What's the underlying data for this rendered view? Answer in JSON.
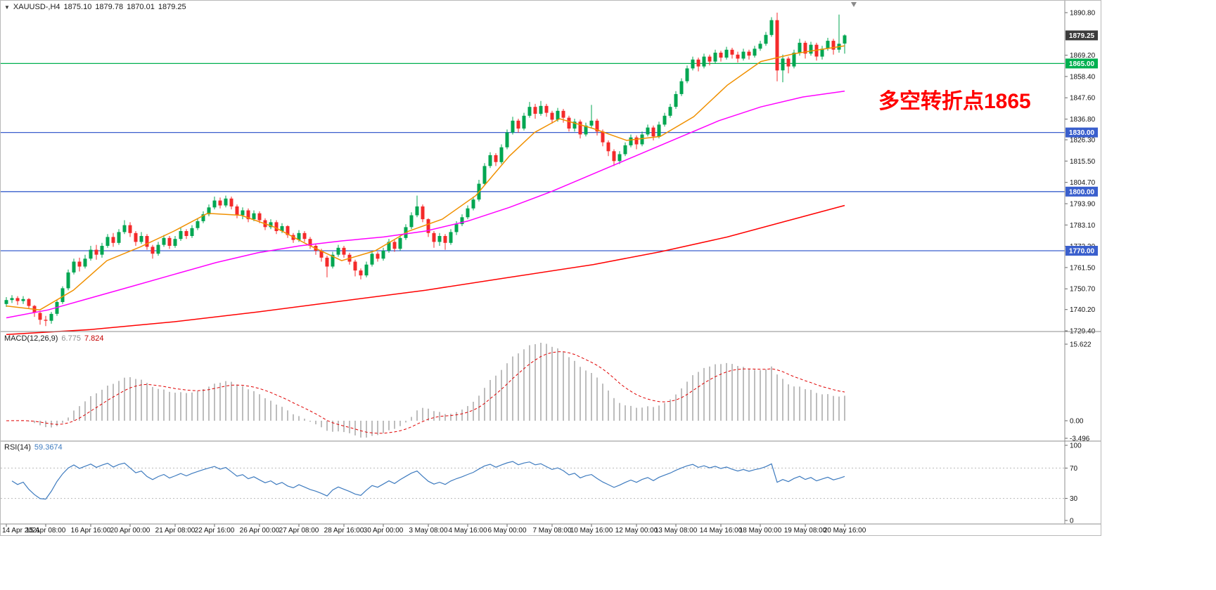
{
  "window": {
    "symbol_info": {
      "symbol": "XAUUSD-,H4",
      "open": "1875.10",
      "high": "1879.78",
      "low": "1870.01",
      "close": "1879.25"
    }
  },
  "annotation": {
    "text": "多空转折点1865",
    "color": "#FF0000"
  },
  "chart_data": {
    "type": "candlestick",
    "symbol": "XAUUSD",
    "timeframe": "H4",
    "title": "XAUUSD-,H4 1875.10 1879.78 1870.01 1879.25",
    "up_color": "#00A651",
    "down_color": "#F42A2A",
    "background": "#FFFFFF",
    "y_axis": {
      "price_top": 1890.8,
      "price_bottom": 1729.4
    },
    "y_ticks": [
      [
        1890.8,
        "1890.80"
      ],
      [
        1869.2,
        "1869.20"
      ],
      [
        1858.4,
        "1858.40"
      ],
      [
        1847.6,
        "1847.60"
      ],
      [
        1836.8,
        "1836.80"
      ],
      [
        1826.3,
        "1826.30"
      ],
      [
        1815.5,
        "1815.50"
      ],
      [
        1804.7,
        "1804.70"
      ],
      [
        1793.9,
        "1793.90"
      ],
      [
        1783.1,
        "1783.10"
      ],
      [
        1772.3,
        "1772.30"
      ],
      [
        1761.5,
        "1761.50"
      ],
      [
        1750.7,
        "1750.70"
      ],
      [
        1740.2,
        "1740.20"
      ],
      [
        1729.4,
        "1729.40"
      ]
    ],
    "x_labels": [
      "14 Apr 2021",
      "15 Apr 08:00",
      "16 Apr 16:00",
      "20 Apr 00:00",
      "21 Apr 08:00",
      "22 Apr 16:00",
      "26 Apr 00:00",
      "27 Apr 08:00",
      "28 Apr 16:00",
      "30 Apr 00:00",
      "3 May 08:00",
      "4 May 16:00",
      "6 May 00:00",
      "7 May 08:00",
      "10 May 16:00",
      "12 May 00:00",
      "13 May 08:00",
      "14 May 16:00",
      "18 May 00:00",
      "19 May 08:00",
      "20 May 16:00"
    ],
    "hlines": [
      {
        "price": 1879.25,
        "label": "1879.25",
        "line": false,
        "color": "#3C3C3C",
        "role": "current-price"
      },
      {
        "price": 1865.0,
        "label": "1865.00",
        "line": true,
        "color": "#00B050",
        "role": "support-resistance"
      },
      {
        "price": 1830.0,
        "label": "1830.00",
        "line": true,
        "color": "#3A5FCD",
        "role": "support-resistance"
      },
      {
        "price": 1800.0,
        "label": "1800.00",
        "line": true,
        "color": "#3A5FCD",
        "role": "support-resistance"
      },
      {
        "price": 1770.0,
        "label": "1770.00",
        "line": true,
        "color": "#3A5FCD",
        "role": "support-resistance"
      }
    ],
    "moving_averages": [
      {
        "name": "ma-fast-orange",
        "color": "#F09000",
        "points": [
          [
            0.0,
            1742
          ],
          [
            0.04,
            1740
          ],
          [
            0.08,
            1750
          ],
          [
            0.12,
            1765
          ],
          [
            0.16,
            1772
          ],
          [
            0.2,
            1780
          ],
          [
            0.24,
            1789
          ],
          [
            0.28,
            1788
          ],
          [
            0.32,
            1782
          ],
          [
            0.36,
            1773
          ],
          [
            0.4,
            1765
          ],
          [
            0.44,
            1770
          ],
          [
            0.48,
            1780
          ],
          [
            0.52,
            1786
          ],
          [
            0.56,
            1798
          ],
          [
            0.6,
            1818
          ],
          [
            0.63,
            1830
          ],
          [
            0.66,
            1837
          ],
          [
            0.7,
            1832
          ],
          [
            0.74,
            1826
          ],
          [
            0.78,
            1828
          ],
          [
            0.82,
            1838
          ],
          [
            0.86,
            1854
          ],
          [
            0.9,
            1866
          ],
          [
            0.94,
            1870
          ],
          [
            0.97,
            1872
          ],
          [
            1.0,
            1874
          ]
        ]
      },
      {
        "name": "ma-mid-magenta",
        "color": "#FF00FF",
        "points": [
          [
            0.0,
            1736
          ],
          [
            0.05,
            1740
          ],
          [
            0.1,
            1746
          ],
          [
            0.15,
            1752
          ],
          [
            0.2,
            1758
          ],
          [
            0.25,
            1764
          ],
          [
            0.3,
            1769
          ],
          [
            0.35,
            1772.5
          ],
          [
            0.4,
            1775
          ],
          [
            0.45,
            1777
          ],
          [
            0.5,
            1780
          ],
          [
            0.55,
            1785
          ],
          [
            0.6,
            1792
          ],
          [
            0.65,
            1800
          ],
          [
            0.7,
            1809
          ],
          [
            0.75,
            1818
          ],
          [
            0.8,
            1827
          ],
          [
            0.85,
            1836
          ],
          [
            0.9,
            1843
          ],
          [
            0.95,
            1848
          ],
          [
            1.0,
            1851
          ]
        ]
      },
      {
        "name": "ma-slow-red",
        "color": "#FF0000",
        "points": [
          [
            0.0,
            1727.5
          ],
          [
            0.1,
            1730
          ],
          [
            0.2,
            1734
          ],
          [
            0.3,
            1739
          ],
          [
            0.4,
            1744.5
          ],
          [
            0.5,
            1750
          ],
          [
            0.6,
            1756.5
          ],
          [
            0.7,
            1763
          ],
          [
            0.78,
            1769.5
          ],
          [
            0.86,
            1777
          ],
          [
            0.93,
            1785
          ],
          [
            1.0,
            1793
          ]
        ]
      }
    ],
    "indicators": {
      "macd": {
        "label": "MACD(12,26,9)",
        "value_main": "6.775",
        "value_signal": "7.824",
        "fast": 12,
        "slow": 26,
        "signal": 9,
        "ticks": [
          "15.622",
          "0.00",
          "-3.496"
        ],
        "hist_color": "#BDBDBD",
        "signal_color": "#E00000"
      },
      "rsi": {
        "label": "RSI(14)",
        "value": "59.3674",
        "period": 14,
        "ticks": [
          "100",
          "70",
          "30",
          "0"
        ],
        "tick_values": [
          100,
          70,
          30,
          0
        ],
        "levels": [
          70,
          30
        ],
        "color": "#3E7BBF"
      }
    },
    "candles": [
      [
        1743.0,
        1746.5,
        1741.5,
        1745.0
      ],
      [
        1745.0,
        1747.5,
        1743.5,
        1746.0
      ],
      [
        1746.0,
        1747.0,
        1742.5,
        1744.5
      ],
      [
        1744.5,
        1747.0,
        1743.0,
        1745.5
      ],
      [
        1745.5,
        1746.0,
        1740.5,
        1742.0
      ],
      [
        1742.0,
        1742.5,
        1736.5,
        1738.5
      ],
      [
        1738.5,
        1739.5,
        1732.5,
        1735.0
      ],
      [
        1735.0,
        1737.0,
        1731.8,
        1734.5
      ],
      [
        1734.5,
        1739.0,
        1733.0,
        1738.0
      ],
      [
        1738.0,
        1745.0,
        1737.0,
        1744.0
      ],
      [
        1744.0,
        1752.0,
        1743.0,
        1751.0
      ],
      [
        1751.0,
        1760.5,
        1750.0,
        1759.0
      ],
      [
        1759.0,
        1766.0,
        1758.0,
        1764.5
      ],
      [
        1764.5,
        1766.5,
        1759.5,
        1762.0
      ],
      [
        1762.0,
        1768.0,
        1761.0,
        1766.0
      ],
      [
        1766.0,
        1772.5,
        1765.0,
        1770.5
      ],
      [
        1770.5,
        1773.0,
        1765.5,
        1768.0
      ],
      [
        1768.0,
        1774.0,
        1766.5,
        1772.5
      ],
      [
        1772.5,
        1778.5,
        1771.5,
        1777.0
      ],
      [
        1777.0,
        1779.0,
        1772.0,
        1774.0
      ],
      [
        1774.0,
        1781.0,
        1773.0,
        1779.5
      ],
      [
        1779.5,
        1785.5,
        1778.5,
        1783.0
      ],
      [
        1783.0,
        1784.5,
        1777.0,
        1779.0
      ],
      [
        1779.0,
        1780.0,
        1772.5,
        1774.5
      ],
      [
        1774.5,
        1779.5,
        1773.5,
        1777.5
      ],
      [
        1777.5,
        1778.5,
        1770.5,
        1772.0
      ],
      [
        1772.0,
        1773.0,
        1766.0,
        1768.5
      ],
      [
        1768.5,
        1774.5,
        1767.5,
        1773.0
      ],
      [
        1773.0,
        1778.0,
        1772.0,
        1776.5
      ],
      [
        1776.5,
        1777.5,
        1771.0,
        1772.5
      ],
      [
        1772.5,
        1777.5,
        1771.5,
        1776.0
      ],
      [
        1776.0,
        1781.5,
        1775.0,
        1780.0
      ],
      [
        1780.0,
        1781.0,
        1776.0,
        1777.5
      ],
      [
        1777.5,
        1783.0,
        1776.5,
        1781.5
      ],
      [
        1781.5,
        1786.5,
        1780.5,
        1785.0
      ],
      [
        1785.0,
        1790.0,
        1784.0,
        1788.5
      ],
      [
        1788.5,
        1793.5,
        1787.5,
        1792.0
      ],
      [
        1792.0,
        1797.5,
        1791.0,
        1795.5
      ],
      [
        1795.5,
        1797.0,
        1791.5,
        1793.0
      ],
      [
        1793.0,
        1798.0,
        1792.0,
        1796.5
      ],
      [
        1796.5,
        1797.5,
        1791.0,
        1792.5
      ],
      [
        1792.5,
        1793.5,
        1786.5,
        1788.0
      ],
      [
        1788.0,
        1792.0,
        1786.0,
        1790.5
      ],
      [
        1790.5,
        1791.5,
        1784.5,
        1786.0
      ],
      [
        1786.0,
        1790.5,
        1785.0,
        1789.0
      ],
      [
        1789.0,
        1790.0,
        1784.0,
        1785.5
      ],
      [
        1785.5,
        1786.5,
        1780.5,
        1782.0
      ],
      [
        1782.0,
        1786.0,
        1781.0,
        1784.5
      ],
      [
        1784.5,
        1785.5,
        1778.5,
        1780.0
      ],
      [
        1780.0,
        1784.0,
        1779.0,
        1782.5
      ],
      [
        1782.5,
        1783.0,
        1776.5,
        1778.0
      ],
      [
        1778.0,
        1779.0,
        1774.0,
        1775.5
      ],
      [
        1775.5,
        1780.5,
        1774.5,
        1779.0
      ],
      [
        1779.0,
        1780.0,
        1774.5,
        1776.0
      ],
      [
        1776.0,
        1777.0,
        1771.0,
        1772.5
      ],
      [
        1772.5,
        1773.5,
        1768.0,
        1770.0
      ],
      [
        1770.0,
        1771.0,
        1764.5,
        1766.5
      ],
      [
        1766.5,
        1767.5,
        1756.5,
        1762.0
      ],
      [
        1762.0,
        1769.5,
        1761.0,
        1768.0
      ],
      [
        1768.0,
        1773.0,
        1767.0,
        1771.5
      ],
      [
        1771.5,
        1772.5,
        1766.5,
        1768.0
      ],
      [
        1768.0,
        1769.0,
        1763.0,
        1764.5
      ],
      [
        1764.5,
        1765.5,
        1757.0,
        1760.0
      ],
      [
        1760.0,
        1761.0,
        1755.5,
        1757.5
      ],
      [
        1757.5,
        1764.5,
        1756.5,
        1763.0
      ],
      [
        1763.0,
        1770.0,
        1762.0,
        1768.5
      ],
      [
        1768.5,
        1769.5,
        1764.5,
        1766.0
      ],
      [
        1766.0,
        1771.5,
        1765.0,
        1770.0
      ],
      [
        1770.0,
        1776.0,
        1769.0,
        1774.5
      ],
      [
        1774.5,
        1775.5,
        1769.5,
        1771.0
      ],
      [
        1771.0,
        1778.0,
        1770.0,
        1776.5
      ],
      [
        1776.5,
        1783.5,
        1775.5,
        1782.0
      ],
      [
        1782.0,
        1789.5,
        1781.0,
        1788.0
      ],
      [
        1788.0,
        1798.0,
        1787.0,
        1792.5
      ],
      [
        1792.5,
        1793.5,
        1784.5,
        1786.0
      ],
      [
        1786.0,
        1786.5,
        1777.0,
        1779.0
      ],
      [
        1779.0,
        1780.0,
        1771.5,
        1774.5
      ],
      [
        1774.5,
        1779.0,
        1772.5,
        1777.5
      ],
      [
        1777.5,
        1778.5,
        1770.5,
        1774.0
      ],
      [
        1774.0,
        1781.0,
        1773.0,
        1779.5
      ],
      [
        1779.5,
        1785.0,
        1778.0,
        1783.5
      ],
      [
        1783.5,
        1788.5,
        1782.5,
        1787.0
      ],
      [
        1787.0,
        1793.0,
        1786.0,
        1791.5
      ],
      [
        1791.5,
        1797.5,
        1790.5,
        1796.0
      ],
      [
        1796.0,
        1806.0,
        1795.0,
        1804.0
      ],
      [
        1804.0,
        1814.5,
        1803.0,
        1813.0
      ],
      [
        1813.0,
        1820.0,
        1812.0,
        1818.5
      ],
      [
        1818.5,
        1819.5,
        1813.0,
        1815.0
      ],
      [
        1815.0,
        1824.0,
        1814.0,
        1822.5
      ],
      [
        1822.5,
        1831.5,
        1821.5,
        1830.0
      ],
      [
        1830.0,
        1838.0,
        1829.0,
        1836.0
      ],
      [
        1836.0,
        1837.0,
        1830.0,
        1832.0
      ],
      [
        1832.0,
        1840.0,
        1831.0,
        1838.5
      ],
      [
        1838.5,
        1845.5,
        1837.5,
        1843.0
      ],
      [
        1843.0,
        1844.5,
        1837.0,
        1839.5
      ],
      [
        1839.5,
        1846.0,
        1838.5,
        1843.5
      ],
      [
        1843.5,
        1844.5,
        1838.0,
        1840.0
      ],
      [
        1840.0,
        1841.0,
        1834.5,
        1836.5
      ],
      [
        1836.5,
        1842.5,
        1835.5,
        1841.0
      ],
      [
        1841.0,
        1842.0,
        1835.0,
        1837.5
      ],
      [
        1837.5,
        1838.5,
        1830.5,
        1832.0
      ],
      [
        1832.0,
        1837.0,
        1830.5,
        1835.5
      ],
      [
        1835.5,
        1836.5,
        1827.0,
        1829.0
      ],
      [
        1829.0,
        1835.0,
        1828.0,
        1833.5
      ],
      [
        1833.5,
        1844.0,
        1832.5,
        1836.0
      ],
      [
        1836.0,
        1837.0,
        1828.5,
        1830.5
      ],
      [
        1830.5,
        1831.5,
        1823.0,
        1825.0
      ],
      [
        1825.0,
        1826.0,
        1818.0,
        1820.5
      ],
      [
        1820.5,
        1821.5,
        1813.0,
        1815.5
      ],
      [
        1815.5,
        1820.5,
        1814.0,
        1819.0
      ],
      [
        1819.0,
        1825.0,
        1818.0,
        1823.5
      ],
      [
        1823.5,
        1829.0,
        1822.5,
        1827.5
      ],
      [
        1827.5,
        1828.5,
        1821.5,
        1824.0
      ],
      [
        1824.0,
        1830.5,
        1823.0,
        1829.0
      ],
      [
        1829.0,
        1834.0,
        1828.0,
        1832.5
      ],
      [
        1832.5,
        1833.5,
        1826.0,
        1828.0
      ],
      [
        1828.0,
        1835.5,
        1827.0,
        1834.0
      ],
      [
        1834.0,
        1840.0,
        1833.0,
        1838.5
      ],
      [
        1838.5,
        1844.5,
        1837.5,
        1843.0
      ],
      [
        1843.0,
        1851.0,
        1842.0,
        1849.5
      ],
      [
        1849.5,
        1857.5,
        1848.5,
        1856.0
      ],
      [
        1856.0,
        1864.0,
        1855.0,
        1862.5
      ],
      [
        1862.5,
        1868.5,
        1861.5,
        1867.0
      ],
      [
        1867.0,
        1868.0,
        1861.0,
        1863.5
      ],
      [
        1863.5,
        1870.0,
        1862.5,
        1868.5
      ],
      [
        1868.5,
        1869.5,
        1864.0,
        1866.0
      ],
      [
        1866.0,
        1872.0,
        1865.0,
        1870.5
      ],
      [
        1870.5,
        1871.5,
        1866.0,
        1868.0
      ],
      [
        1868.0,
        1873.5,
        1867.0,
        1872.0
      ],
      [
        1872.0,
        1873.0,
        1867.5,
        1869.5
      ],
      [
        1869.5,
        1871.0,
        1865.5,
        1867.5
      ],
      [
        1867.5,
        1872.5,
        1866.5,
        1871.0
      ],
      [
        1871.0,
        1872.0,
        1867.0,
        1869.0
      ],
      [
        1869.0,
        1874.0,
        1868.0,
        1872.5
      ],
      [
        1872.5,
        1876.5,
        1871.5,
        1875.0
      ],
      [
        1875.0,
        1881.0,
        1874.0,
        1879.5
      ],
      [
        1879.5,
        1888.5,
        1878.5,
        1887.0
      ],
      [
        1887.0,
        1890.8,
        1856.0,
        1861.5
      ],
      [
        1861.5,
        1869.5,
        1855.5,
        1867.5
      ],
      [
        1867.5,
        1868.5,
        1860.0,
        1863.5
      ],
      [
        1863.5,
        1872.0,
        1862.5,
        1870.5
      ],
      [
        1870.5,
        1877.5,
        1869.0,
        1875.5
      ],
      [
        1875.5,
        1876.5,
        1867.5,
        1870.0
      ],
      [
        1870.0,
        1876.0,
        1869.0,
        1874.5
      ],
      [
        1874.5,
        1875.5,
        1866.5,
        1868.5
      ],
      [
        1868.5,
        1874.0,
        1867.0,
        1872.5
      ],
      [
        1872.5,
        1878.0,
        1871.5,
        1876.5
      ],
      [
        1876.5,
        1877.5,
        1869.5,
        1872.0
      ],
      [
        1872.0,
        1889.8,
        1870.5,
        1875.0
      ],
      [
        1875.1,
        1879.78,
        1870.01,
        1879.25
      ]
    ]
  }
}
